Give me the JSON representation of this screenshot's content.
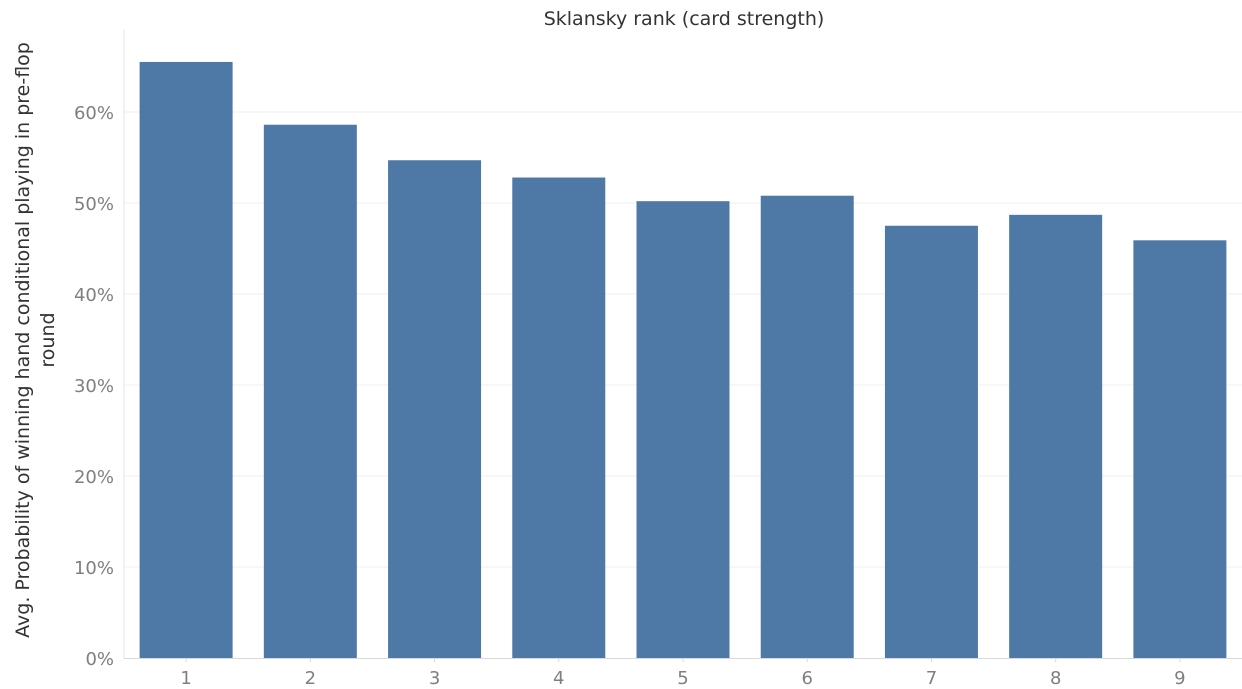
{
  "chart_data": {
    "type": "bar",
    "title": "Sklansky rank (card strength)",
    "xlabel": "",
    "ylabel": "Avg. Probability of winning hand conditional playing in pre-flop round",
    "categories": [
      "1",
      "2",
      "3",
      "4",
      "5",
      "6",
      "7",
      "8",
      "9"
    ],
    "values": [
      0.655,
      0.586,
      0.547,
      0.528,
      0.502,
      0.508,
      0.475,
      0.487,
      0.459
    ],
    "ylim": [
      0,
      0.7
    ],
    "yticks": [
      0,
      0.1,
      0.2,
      0.3,
      0.4,
      0.5,
      0.6
    ],
    "ytick_labels": [
      "0%",
      "10%",
      "20%",
      "30%",
      "40%",
      "50%",
      "60%"
    ],
    "grid": true,
    "bar_color": "#4e79a7",
    "legend": "none"
  }
}
